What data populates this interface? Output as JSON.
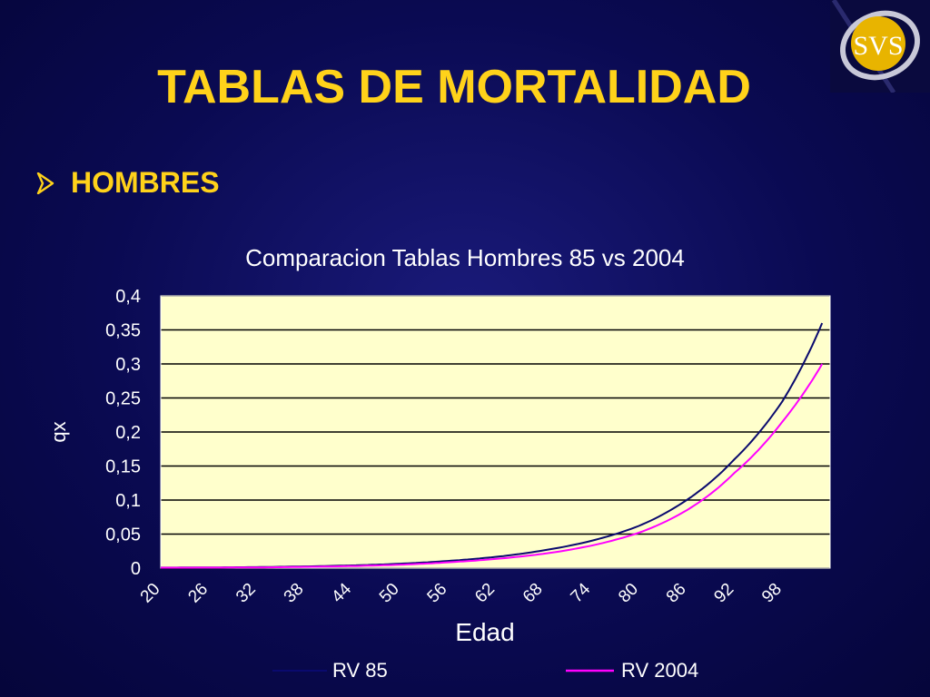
{
  "slide": {
    "title": "TABLAS DE MORTALIDAD",
    "bullet": "HOMBRES",
    "logo_text": "SVS"
  },
  "colors": {
    "background": "#0a0a52",
    "accent": "#ffd21a",
    "plot_bg": "#ffffcc",
    "rv85": "#0a0a6e",
    "rv2004": "#ff00ff"
  },
  "chart_data": {
    "type": "line",
    "title": "Comparacion Tablas Hombres 85 vs 2004",
    "xlabel": "Edad",
    "ylabel": "qx",
    "xlim": [
      20,
      104
    ],
    "ylim": [
      0,
      0.4
    ],
    "x_ticks": [
      "20",
      "26",
      "32",
      "38",
      "44",
      "50",
      "56",
      "62",
      "68",
      "74",
      "80",
      "86",
      "92",
      "98"
    ],
    "y_ticks": [
      "0",
      "0,05",
      "0,1",
      "0,15",
      "0,2",
      "0,25",
      "0,3",
      "0,35",
      "0,4"
    ],
    "grid": true,
    "legend": "bottom",
    "x": [
      20,
      26,
      32,
      38,
      44,
      50,
      56,
      62,
      68,
      74,
      80,
      86,
      92,
      98,
      103
    ],
    "series": [
      {
        "name": "RV 85",
        "values": [
          0.0008,
          0.001,
          0.0015,
          0.0025,
          0.004,
          0.0065,
          0.0105,
          0.0165,
          0.026,
          0.04,
          0.062,
          0.1,
          0.16,
          0.245,
          0.36
        ]
      },
      {
        "name": "RV 2004",
        "values": [
          0.0006,
          0.0008,
          0.001,
          0.0018,
          0.003,
          0.005,
          0.0085,
          0.0135,
          0.021,
          0.033,
          0.052,
          0.085,
          0.14,
          0.215,
          0.3
        ]
      }
    ]
  }
}
